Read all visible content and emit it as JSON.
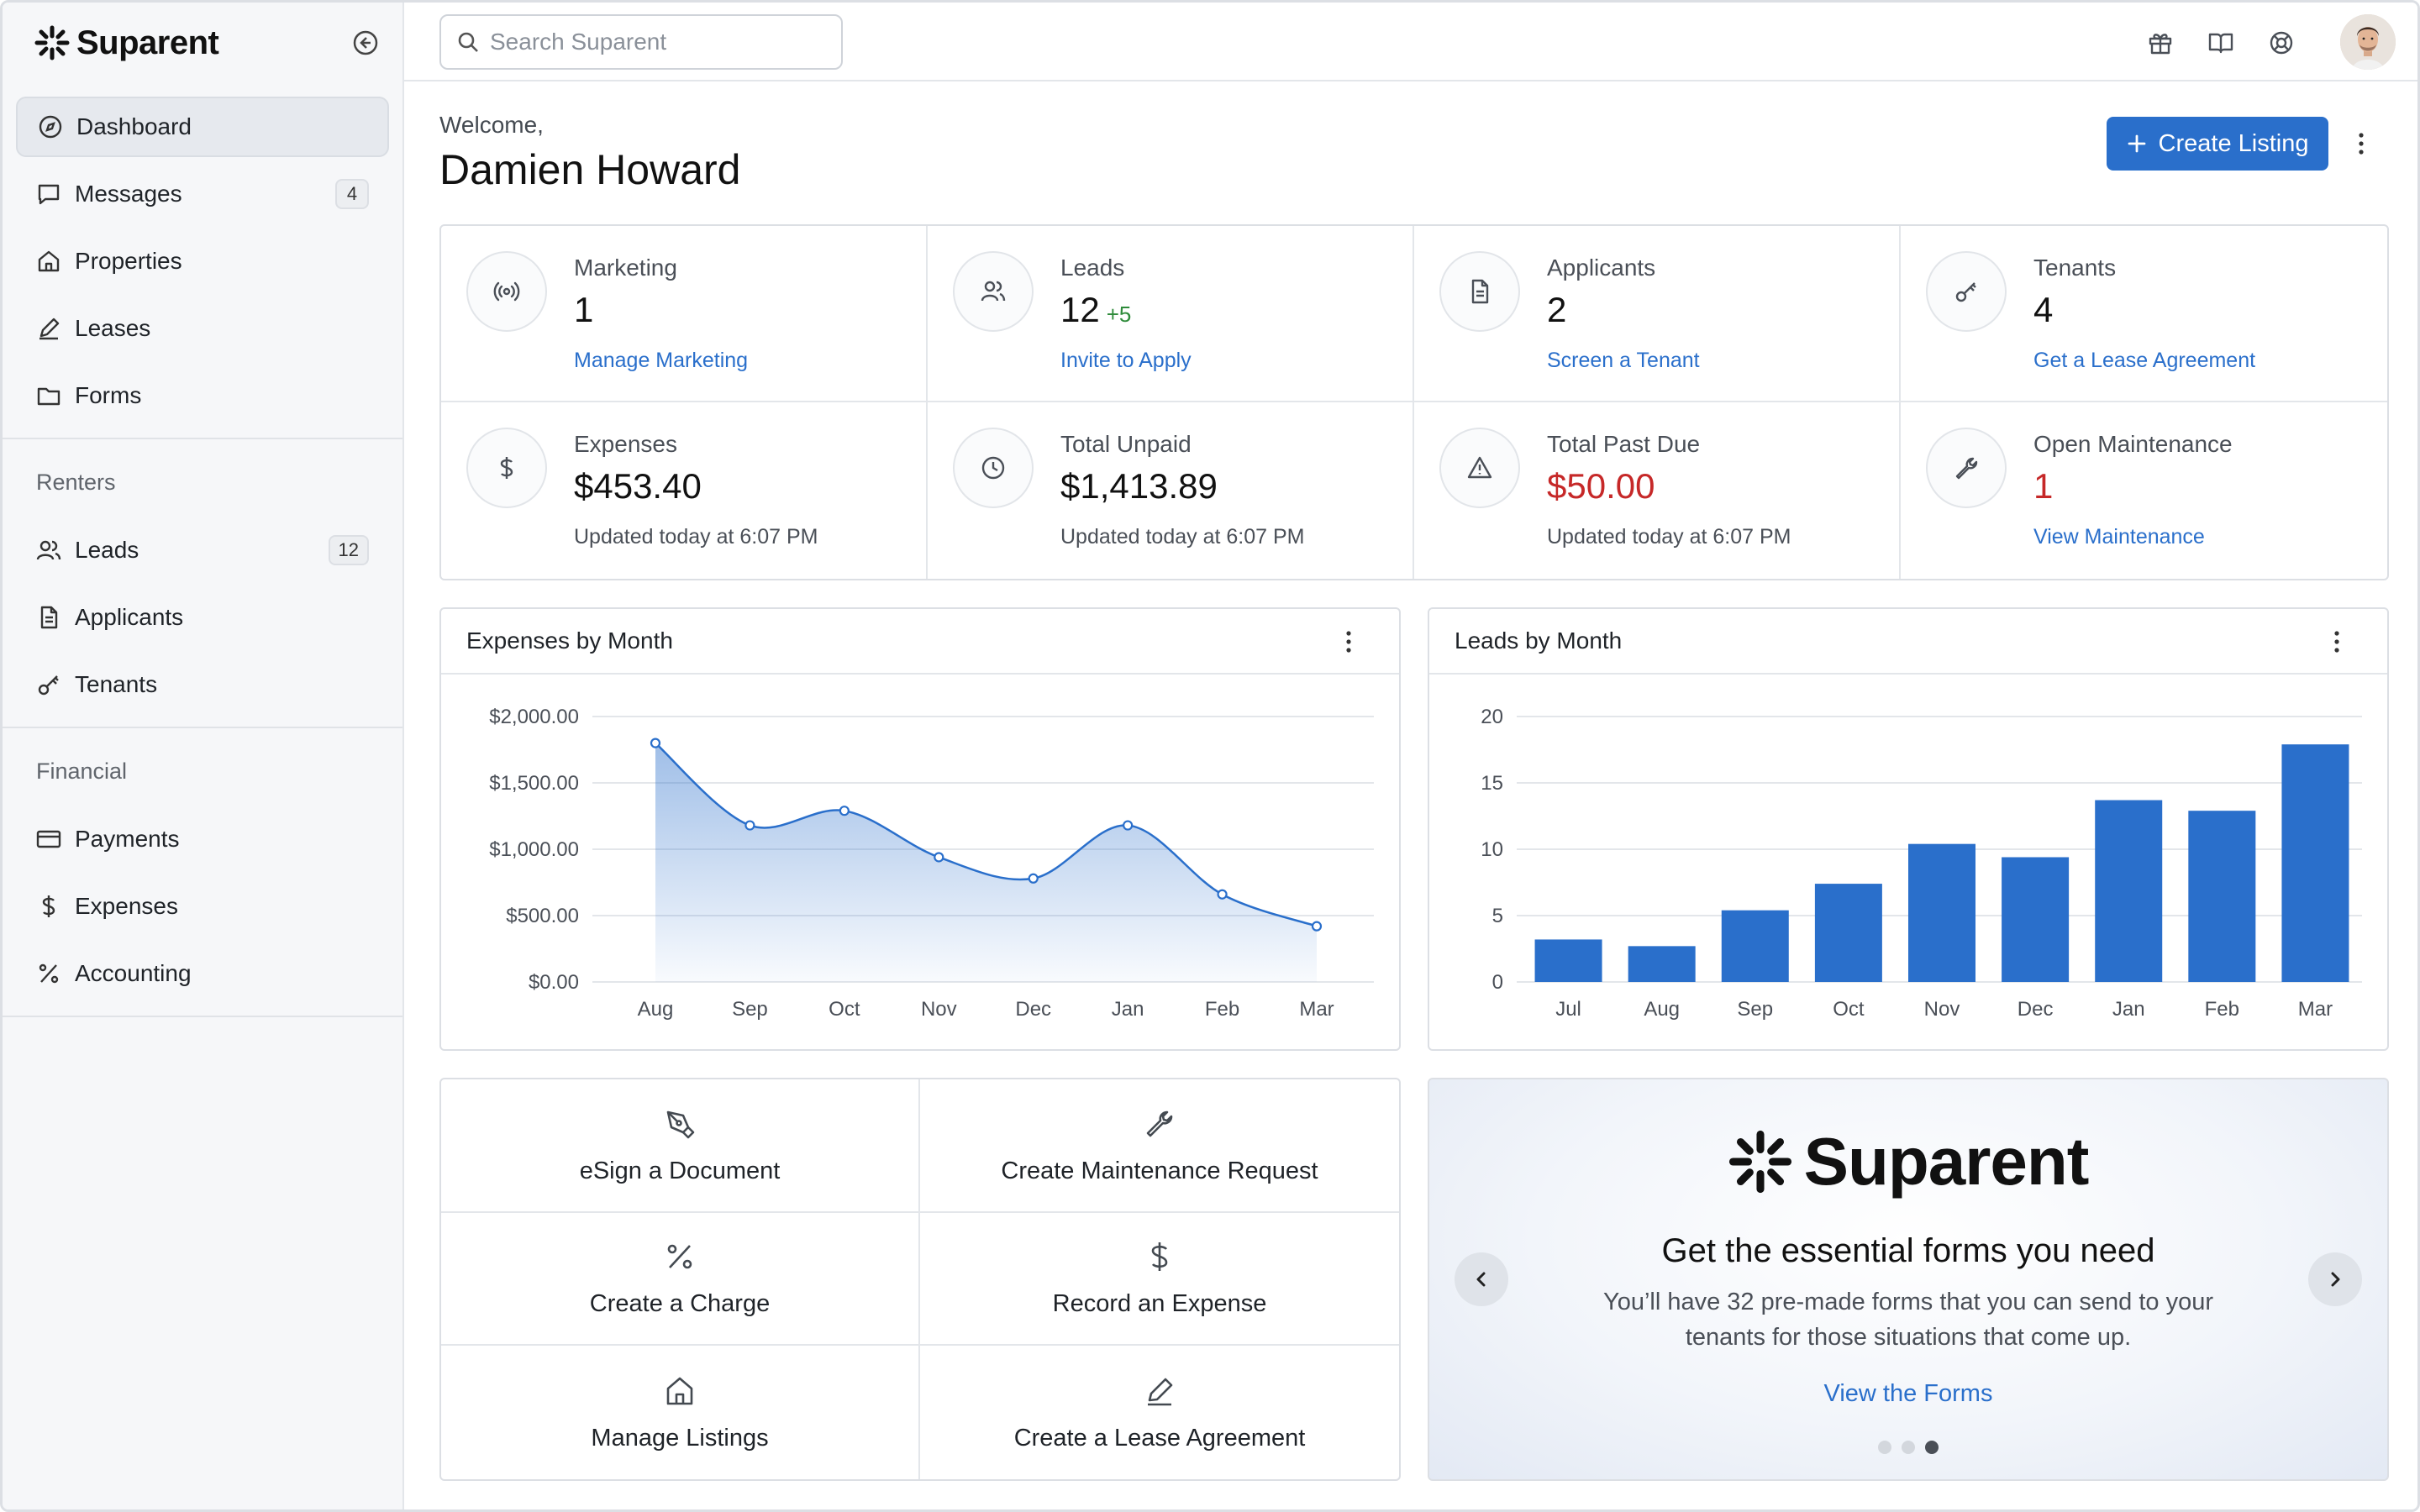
{
  "brand": {
    "name": "Suparent"
  },
  "sidebar": {
    "main_items": [
      {
        "label": "Dashboard",
        "icon": "compass-icon",
        "active": true
      },
      {
        "label": "Messages",
        "icon": "message-icon",
        "badge": "4"
      },
      {
        "label": "Properties",
        "icon": "home-icon"
      },
      {
        "label": "Leases",
        "icon": "pen-icon"
      },
      {
        "label": "Forms",
        "icon": "folder-icon"
      }
    ],
    "renters_heading": "Renters",
    "renters_items": [
      {
        "label": "Leads",
        "icon": "users-icon",
        "badge": "12"
      },
      {
        "label": "Applicants",
        "icon": "document-icon"
      },
      {
        "label": "Tenants",
        "icon": "key-icon"
      }
    ],
    "financial_heading": "Financial",
    "financial_items": [
      {
        "label": "Payments",
        "icon": "credit-card-icon"
      },
      {
        "label": "Expenses",
        "icon": "dollar-icon"
      },
      {
        "label": "Accounting",
        "icon": "percent-icon"
      }
    ]
  },
  "topbar": {
    "search_placeholder": "Search Suparent"
  },
  "header": {
    "welcome": "Welcome,",
    "user_name": "Damien Howard",
    "create_label": "Create Listing"
  },
  "stats": [
    {
      "label": "Marketing",
      "value": "1",
      "link": "Manage Marketing",
      "icon": "broadcast-icon"
    },
    {
      "label": "Leads",
      "value": "12",
      "delta": "+5",
      "link": "Invite to Apply",
      "icon": "users-icon"
    },
    {
      "label": "Applicants",
      "value": "2",
      "link": "Screen a Tenant",
      "icon": "document-icon"
    },
    {
      "label": "Tenants",
      "value": "4",
      "link": "Get a Lease Agreement",
      "icon": "key-icon"
    },
    {
      "label": "Expenses",
      "value": "$453.40",
      "note": "Updated today at 6:07 PM",
      "icon": "dollar-icon"
    },
    {
      "label": "Total Unpaid",
      "value": "$1,413.89",
      "note": "Updated today at 6:07 PM",
      "icon": "clock-icon"
    },
    {
      "label": "Total Past Due",
      "value": "$50.00",
      "note": "Updated today at 6:07 PM",
      "icon": "warning-icon"
    },
    {
      "label": "Open Maintenance",
      "value": "1",
      "link": "View Maintenance",
      "icon": "wrench-icon"
    }
  ],
  "chart_data": [
    {
      "type": "area",
      "title": "Expenses by Month",
      "categories": [
        "Aug",
        "Sep",
        "Oct",
        "Nov",
        "Dec",
        "Jan",
        "Feb",
        "Mar"
      ],
      "values": [
        1800,
        1180,
        1290,
        940,
        780,
        1180,
        660,
        420
      ],
      "ylim": [
        0,
        2000
      ],
      "yticks": [
        "$0.00",
        "$500.00",
        "$1,000.00",
        "$1,500.00",
        "$2,000.00"
      ],
      "xlabel": "",
      "ylabel": "",
      "grid": true,
      "color": "#2a6fcb"
    },
    {
      "type": "bar",
      "title": "Leads by Month",
      "categories": [
        "Jul",
        "Aug",
        "Sep",
        "Oct",
        "Nov",
        "Dec",
        "Jan",
        "Feb",
        "Mar"
      ],
      "values": [
        3.2,
        2.7,
        5.4,
        7.4,
        10.4,
        9.4,
        13.7,
        12.9,
        17.9
      ],
      "ylim": [
        0,
        20
      ],
      "yticks": [
        "0",
        "5",
        "10",
        "15",
        "20"
      ],
      "xlabel": "",
      "ylabel": "",
      "grid": true,
      "color": "#2a6fcb"
    }
  ],
  "actions": [
    {
      "label": "eSign a Document",
      "icon": "pen-nib-icon"
    },
    {
      "label": "Create Maintenance Request",
      "icon": "wrench-icon"
    },
    {
      "label": "Create a Charge",
      "icon": "percent-icon"
    },
    {
      "label": "Record an Expense",
      "icon": "dollar-icon"
    },
    {
      "label": "Manage Listings",
      "icon": "home-icon"
    },
    {
      "label": "Create a Lease Agreement",
      "icon": "pen-icon"
    }
  ],
  "promo": {
    "brand": "Suparent",
    "title": "Get the essential forms you need",
    "subtitle": "You’ll have 32 pre-made forms that you can send to your tenants for those situations that come up.",
    "link": "View the Forms",
    "slides": 3,
    "active_slide": 3
  },
  "colors": {
    "accent": "#2a6fcb",
    "danger": "#c62828",
    "positive": "#2e8b3a"
  }
}
